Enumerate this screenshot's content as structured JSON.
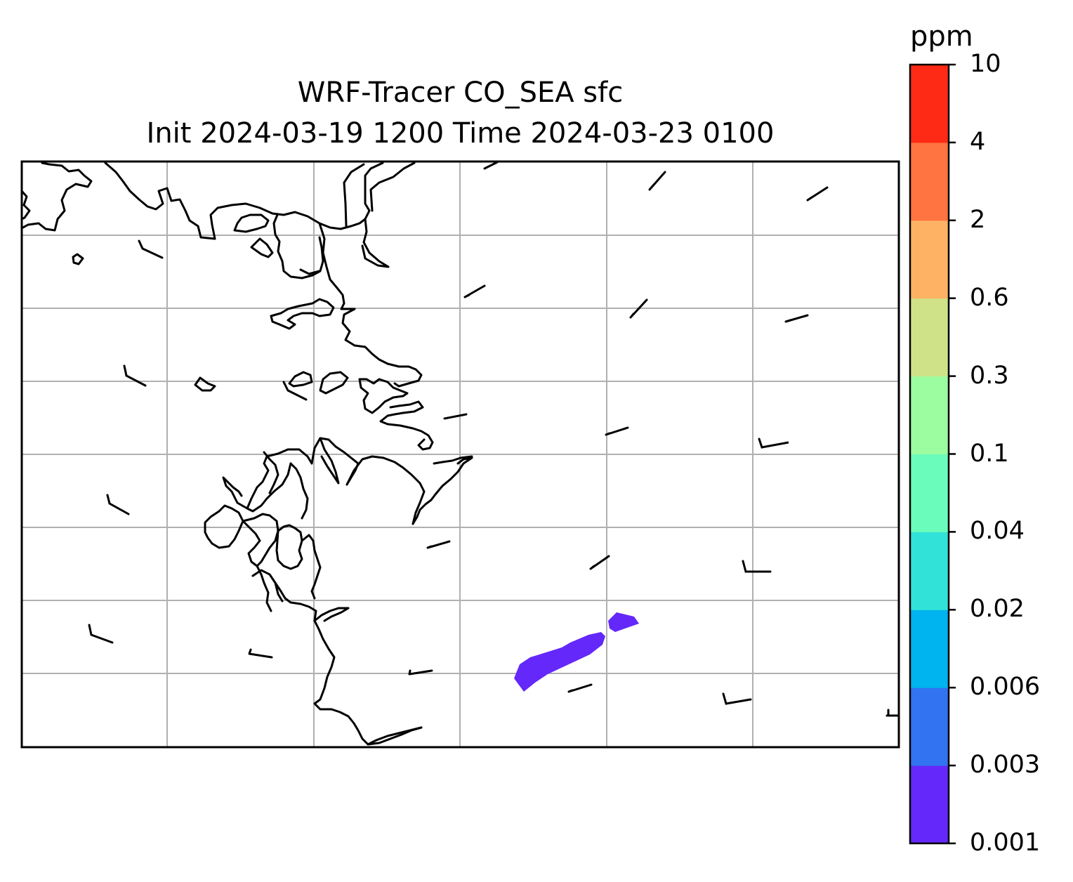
{
  "title": {
    "line1": "WRF-Tracer CO_SEA sfc",
    "line2": "Init 2024-03-19 1200 Time 2024-03-23 0100"
  },
  "colorbar": {
    "unit": "ppm",
    "levels": [
      "0.001",
      "0.003",
      "0.006",
      "0.02",
      "0.04",
      "0.1",
      "0.3",
      "0.6",
      "2",
      "4",
      "10"
    ],
    "colors": [
      "#6428fa",
      "#3273f2",
      "#00b4ef",
      "#31e2d8",
      "#6afcba",
      "#9cfda0",
      "#d0e287",
      "#feb364",
      "#ff7441",
      "#ff2a16"
    ]
  },
  "map": {
    "gridlines": true,
    "grid_color": "#b0b0b0",
    "coastline_color": "#000000",
    "concentration_fill": {
      "level_bin": "0.001-0.003",
      "color": "#6428fa"
    }
  },
  "wind_barbs": {
    "icon": "wind-barb-icon",
    "color": "#000000"
  },
  "chart_data": {
    "type": "heatmap",
    "title": "WRF-Tracer CO_SEA sfc",
    "subtitle": "Init 2024-03-19 1200 Time 2024-03-23 0100",
    "variable": "CO_SEA surface tracer concentration",
    "colorbar_label": "ppm",
    "contour_levels": [
      0.001,
      0.003,
      0.006,
      0.02,
      0.04,
      0.1,
      0.3,
      0.6,
      2,
      4,
      10
    ],
    "filled_regions": [
      {
        "range": [
          0.001,
          0.003
        ],
        "color": "#6428fa",
        "count": 2
      }
    ],
    "grid": true,
    "legend": "colorbar-right"
  }
}
